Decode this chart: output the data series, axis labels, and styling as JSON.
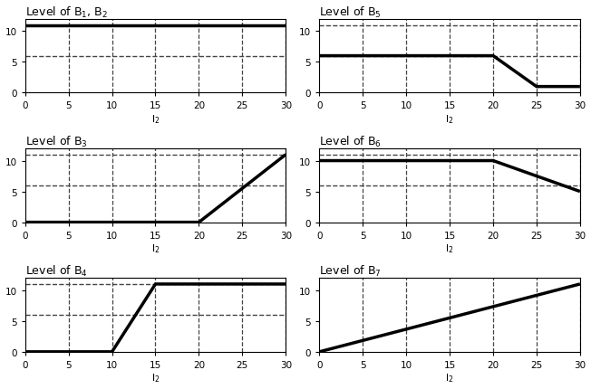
{
  "plots": [
    {
      "title": "Level of B$_1$, B$_2$",
      "xlabel": "l$_2$",
      "line_x": [
        0,
        30
      ],
      "line_y": [
        11,
        11
      ],
      "hline_y": 6,
      "hline2_y": null,
      "vlines_x": [
        5,
        10,
        15,
        20,
        25,
        30
      ],
      "ylim": [
        0,
        12
      ],
      "xlim": [
        0,
        30
      ],
      "xticks": [
        0,
        5,
        10,
        15,
        20,
        25,
        30
      ],
      "yticks": [
        0,
        5,
        10
      ],
      "row": 0,
      "col": 0
    },
    {
      "title": "Level of B$_5$",
      "xlabel": "l$_2$",
      "line_x": [
        0,
        20,
        25,
        30
      ],
      "line_y": [
        6,
        6,
        1,
        1
      ],
      "hline_y": 11,
      "hline2_y": 6,
      "vlines_x": [
        5,
        10,
        15,
        20,
        25,
        30
      ],
      "ylim": [
        0,
        12
      ],
      "xlim": [
        0,
        30
      ],
      "xticks": [
        0,
        5,
        10,
        15,
        20,
        25,
        30
      ],
      "yticks": [
        0,
        5,
        10
      ],
      "row": 0,
      "col": 1
    },
    {
      "title": "Level of B$_3$",
      "xlabel": "l$_2$",
      "line_x": [
        0,
        20,
        30
      ],
      "line_y": [
        0,
        0,
        11
      ],
      "hline_y": 11,
      "hline2_y": 6,
      "vlines_x": [
        5,
        10,
        15,
        20,
        25,
        30
      ],
      "ylim": [
        0,
        12
      ],
      "xlim": [
        0,
        30
      ],
      "xticks": [
        0,
        5,
        10,
        15,
        20,
        25,
        30
      ],
      "yticks": [
        0,
        5,
        10
      ],
      "row": 1,
      "col": 0
    },
    {
      "title": "Level of B$_6$",
      "xlabel": "l$_2$",
      "line_x": [
        0,
        20,
        30
      ],
      "line_y": [
        10,
        10,
        5
      ],
      "hline_y": 11,
      "hline2_y": 6,
      "vlines_x": [
        5,
        10,
        15,
        20,
        25,
        30
      ],
      "ylim": [
        0,
        12
      ],
      "xlim": [
        0,
        30
      ],
      "xticks": [
        0,
        5,
        10,
        15,
        20,
        25,
        30
      ],
      "yticks": [
        0,
        5,
        10
      ],
      "row": 1,
      "col": 1
    },
    {
      "title": "Level of B$_4$",
      "xlabel": "l$_2$",
      "line_x": [
        0,
        10,
        15,
        30
      ],
      "line_y": [
        0,
        0,
        11,
        11
      ],
      "hline_y": 11,
      "hline2_y": 6,
      "vlines_x": [
        5,
        10,
        15,
        20,
        25,
        30
      ],
      "ylim": [
        0,
        12
      ],
      "xlim": [
        0,
        30
      ],
      "xticks": [
        0,
        5,
        10,
        15,
        20,
        25,
        30
      ],
      "yticks": [
        0,
        5,
        10
      ],
      "row": 2,
      "col": 0
    },
    {
      "title": "Level of B$_7$",
      "xlabel": "l$_2$",
      "line_x": [
        0,
        30
      ],
      "line_y": [
        0,
        11
      ],
      "hline_y": null,
      "hline2_y": null,
      "vlines_x": [
        5,
        10,
        15,
        20,
        25,
        30
      ],
      "ylim": [
        0,
        12
      ],
      "xlim": [
        0,
        30
      ],
      "xticks": [
        0,
        5,
        10,
        15,
        20,
        25,
        30
      ],
      "yticks": [
        0,
        5,
        10
      ],
      "row": 2,
      "col": 1
    }
  ],
  "line_color": "#000000",
  "line_width": 2.5,
  "hline_color": "#444444",
  "hline_style": "--",
  "vline_color": "#444444",
  "vline_style": "--",
  "bg_color": "#ffffff",
  "title_fontsize": 9,
  "label_fontsize": 8,
  "tick_fontsize": 7.5
}
